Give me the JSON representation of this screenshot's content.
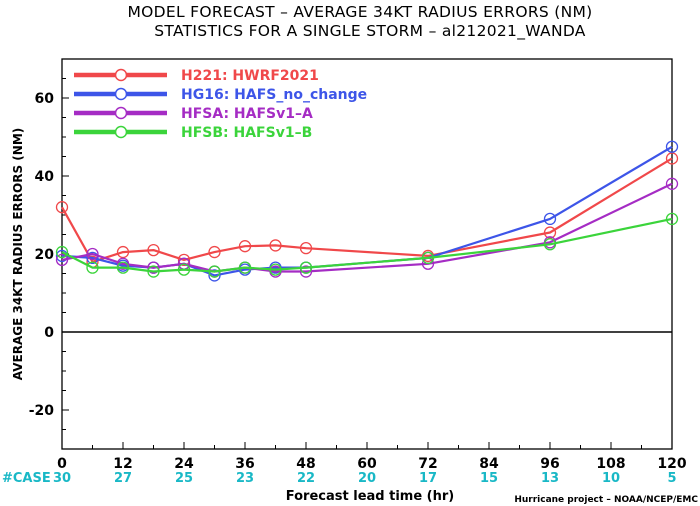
{
  "chart_data": {
    "type": "line",
    "title": "MODEL FORECAST – AVERAGE 34KT RADIUS ERRORS (NM)",
    "subtitle": "STATISTICS FOR A SINGLE STORM – al212021_WANDA",
    "xlabel": "Forecast lead time (hr)",
    "ylabel": "AVERAGE 34KT RADIUS ERRORS (NM)",
    "xlim": [
      0,
      120
    ],
    "ylim": [
      -30,
      70
    ],
    "x_ticks": [
      0,
      12,
      24,
      36,
      48,
      60,
      72,
      84,
      96,
      108,
      120
    ],
    "y_ticks": [
      -20,
      0,
      20,
      40,
      60
    ],
    "grid": false,
    "legend_position": "top-left",
    "case_label": "#CASE",
    "case_counts": [
      "30",
      "27",
      "25",
      "23",
      "22",
      "20",
      "17",
      "15",
      "13",
      "10",
      "5"
    ],
    "credit": "Hurricane project – NOAA/NCEP/EMC",
    "series": [
      {
        "name": "H221",
        "desc": "HWRF2021",
        "color": "#f0484a",
        "points": [
          [
            0,
            32
          ],
          [
            6,
            18
          ],
          [
            12,
            20.5
          ],
          [
            18,
            21
          ],
          [
            24,
            18.5
          ],
          [
            30,
            20.5
          ],
          [
            36,
            22
          ],
          [
            42,
            22.2
          ],
          [
            48,
            21.5
          ],
          [
            72,
            19.5
          ],
          [
            96,
            25.5
          ],
          [
            120,
            44.5
          ]
        ]
      },
      {
        "name": "HG16",
        "desc": "HAFS_no_change",
        "color": "#3d55e8",
        "points": [
          [
            0,
            19.5
          ],
          [
            6,
            19
          ],
          [
            12,
            17
          ],
          [
            18,
            16.5
          ],
          [
            24,
            17.5
          ],
          [
            30,
            14.5
          ],
          [
            36,
            16
          ],
          [
            42,
            16.5
          ],
          [
            48,
            16.5
          ],
          [
            72,
            19
          ],
          [
            96,
            29
          ],
          [
            120,
            47.5
          ]
        ]
      },
      {
        "name": "HFSA",
        "desc": "HAFSv1–A",
        "color": "#a52cc4",
        "points": [
          [
            0,
            18.5
          ],
          [
            6,
            20
          ],
          [
            12,
            17.5
          ],
          [
            18,
            16.5
          ],
          [
            24,
            17.5
          ],
          [
            30,
            15.5
          ],
          [
            36,
            16.5
          ],
          [
            42,
            15.5
          ],
          [
            48,
            15.5
          ],
          [
            72,
            17.5
          ],
          [
            96,
            23
          ],
          [
            120,
            38
          ]
        ]
      },
      {
        "name": "HFSB",
        "desc": "HAFSv1–B",
        "color": "#3bd43b",
        "points": [
          [
            0,
            20.5
          ],
          [
            6,
            16.5
          ],
          [
            12,
            16.5
          ],
          [
            18,
            15.5
          ],
          [
            24,
            16
          ],
          [
            30,
            15.5
          ],
          [
            36,
            16.5
          ],
          [
            42,
            16
          ],
          [
            48,
            16.5
          ],
          [
            72,
            19
          ],
          [
            96,
            22.5
          ],
          [
            120,
            29
          ]
        ]
      }
    ]
  }
}
